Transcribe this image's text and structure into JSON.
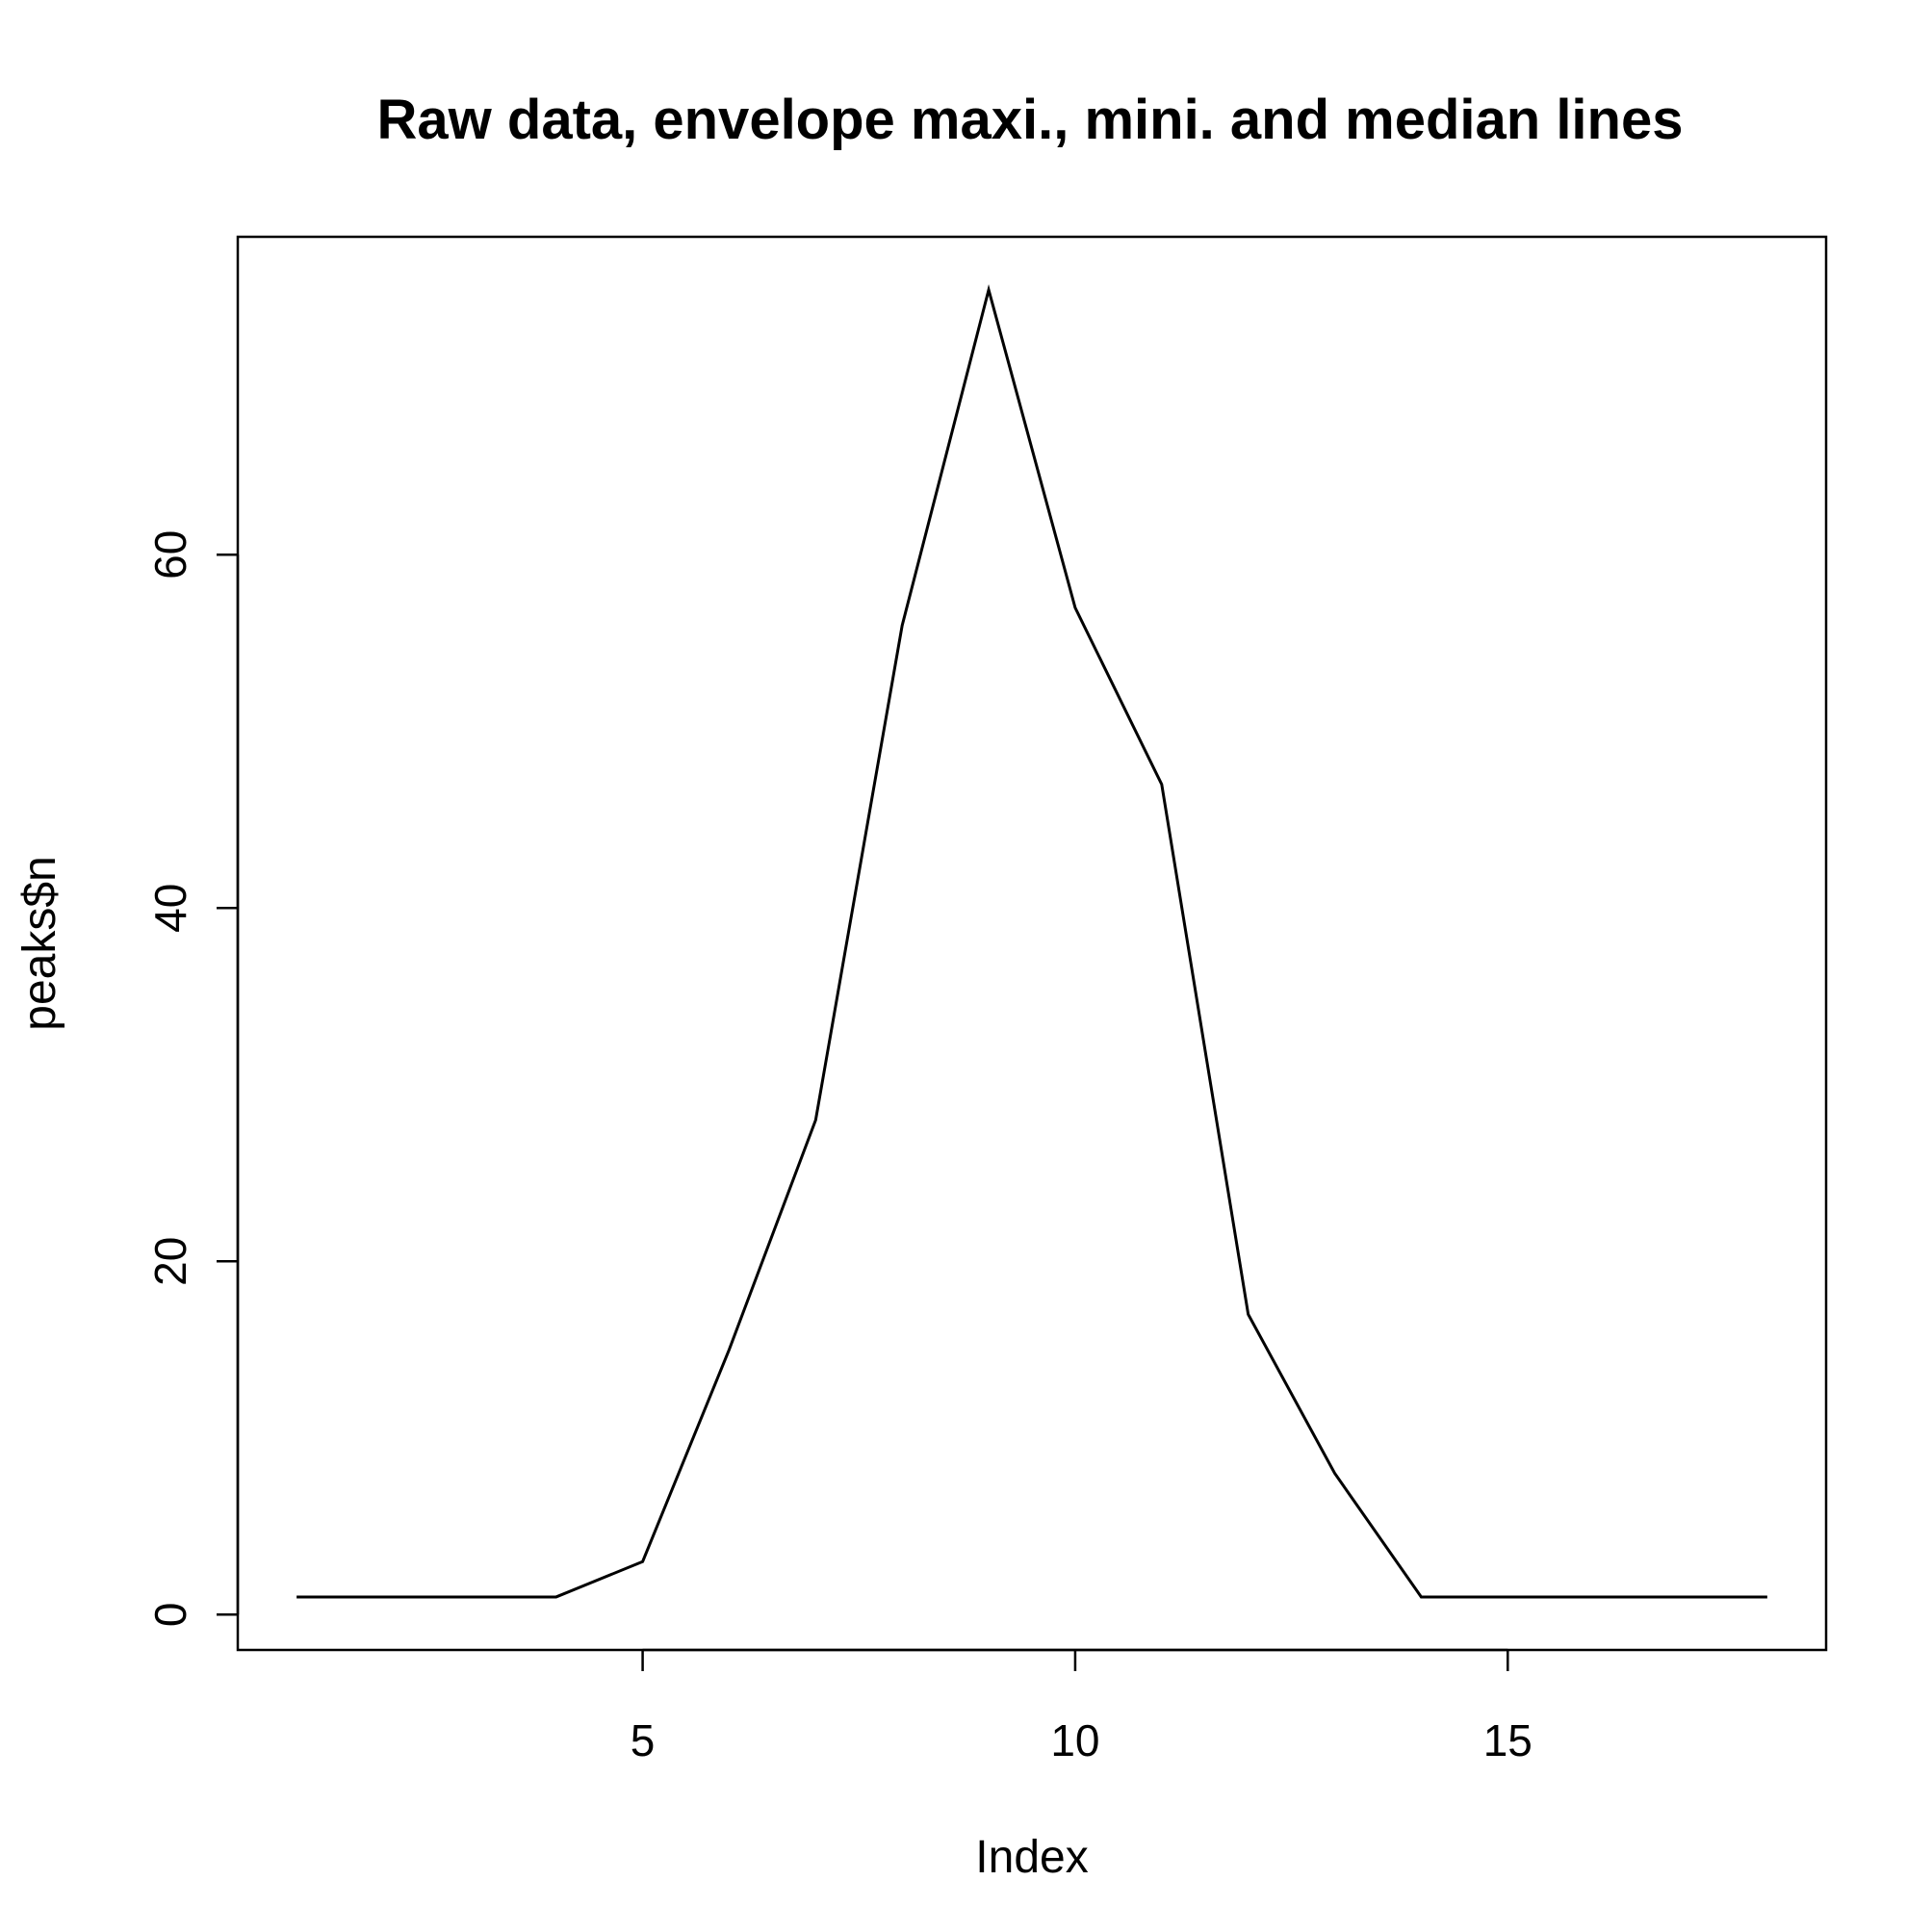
{
  "chart_data": {
    "type": "line",
    "title": "Raw data, envelope maxi., mini. and median lines",
    "xlabel": "Index",
    "ylabel": "peaks$n",
    "x": [
      1,
      2,
      3,
      4,
      5,
      6,
      7,
      8,
      9,
      10,
      11,
      12,
      13,
      14,
      15,
      16,
      17,
      18
    ],
    "series": [
      {
        "values": [
          1,
          1,
          1,
          1,
          3,
          15,
          28,
          56,
          75,
          57,
          47,
          17,
          8,
          1,
          1,
          1,
          1,
          1
        ],
        "color": "#000000"
      }
    ],
    "xlim": [
      0.32,
      18.68
    ],
    "ylim": [
      -2,
      78
    ],
    "xticks": [
      5,
      10,
      15
    ],
    "yticks": [
      0,
      20,
      40,
      60
    ],
    "grid": false,
    "legend": "none"
  }
}
